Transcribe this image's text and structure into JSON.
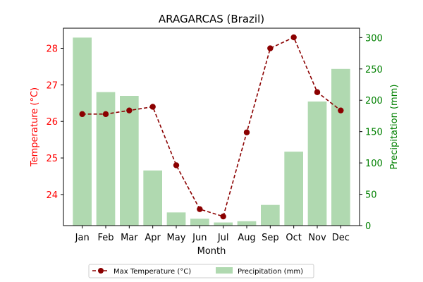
{
  "chart_data": {
    "type": "bar+line",
    "title": "ARAGARCAS (Brazil)",
    "xlabel": "Month",
    "ylabel_left": "Temperature (°C)",
    "ylabel_right": "Precipitation (mm)",
    "categories": [
      "Jan",
      "Feb",
      "Mar",
      "Apr",
      "May",
      "Jun",
      "Jul",
      "Aug",
      "Sep",
      "Oct",
      "Nov",
      "Dec"
    ],
    "ylim_left": [
      23.15,
      28.55
    ],
    "ylim_right": [
      0,
      315
    ],
    "yticks_left": [
      24,
      25,
      26,
      27,
      28
    ],
    "yticks_right": [
      0,
      50,
      100,
      150,
      200,
      250,
      300
    ],
    "series": [
      {
        "name": "Max Temperature (°C)",
        "type": "line",
        "axis": "left",
        "color": "#8b0000",
        "values": [
          26.2,
          26.2,
          26.3,
          26.4,
          24.8,
          23.6,
          23.4,
          25.7,
          28.0,
          28.3,
          26.8,
          26.3
        ]
      },
      {
        "name": "Precipitation (mm)",
        "type": "bar",
        "axis": "right",
        "color": "#b0d9b0",
        "values": [
          300,
          213,
          207,
          88,
          21,
          11,
          5,
          7,
          33,
          118,
          198,
          250
        ]
      }
    ],
    "legend_position": "bottom-center",
    "grid": false,
    "colors": {
      "left_axis": "#ff0000",
      "right_axis": "#008000"
    }
  }
}
